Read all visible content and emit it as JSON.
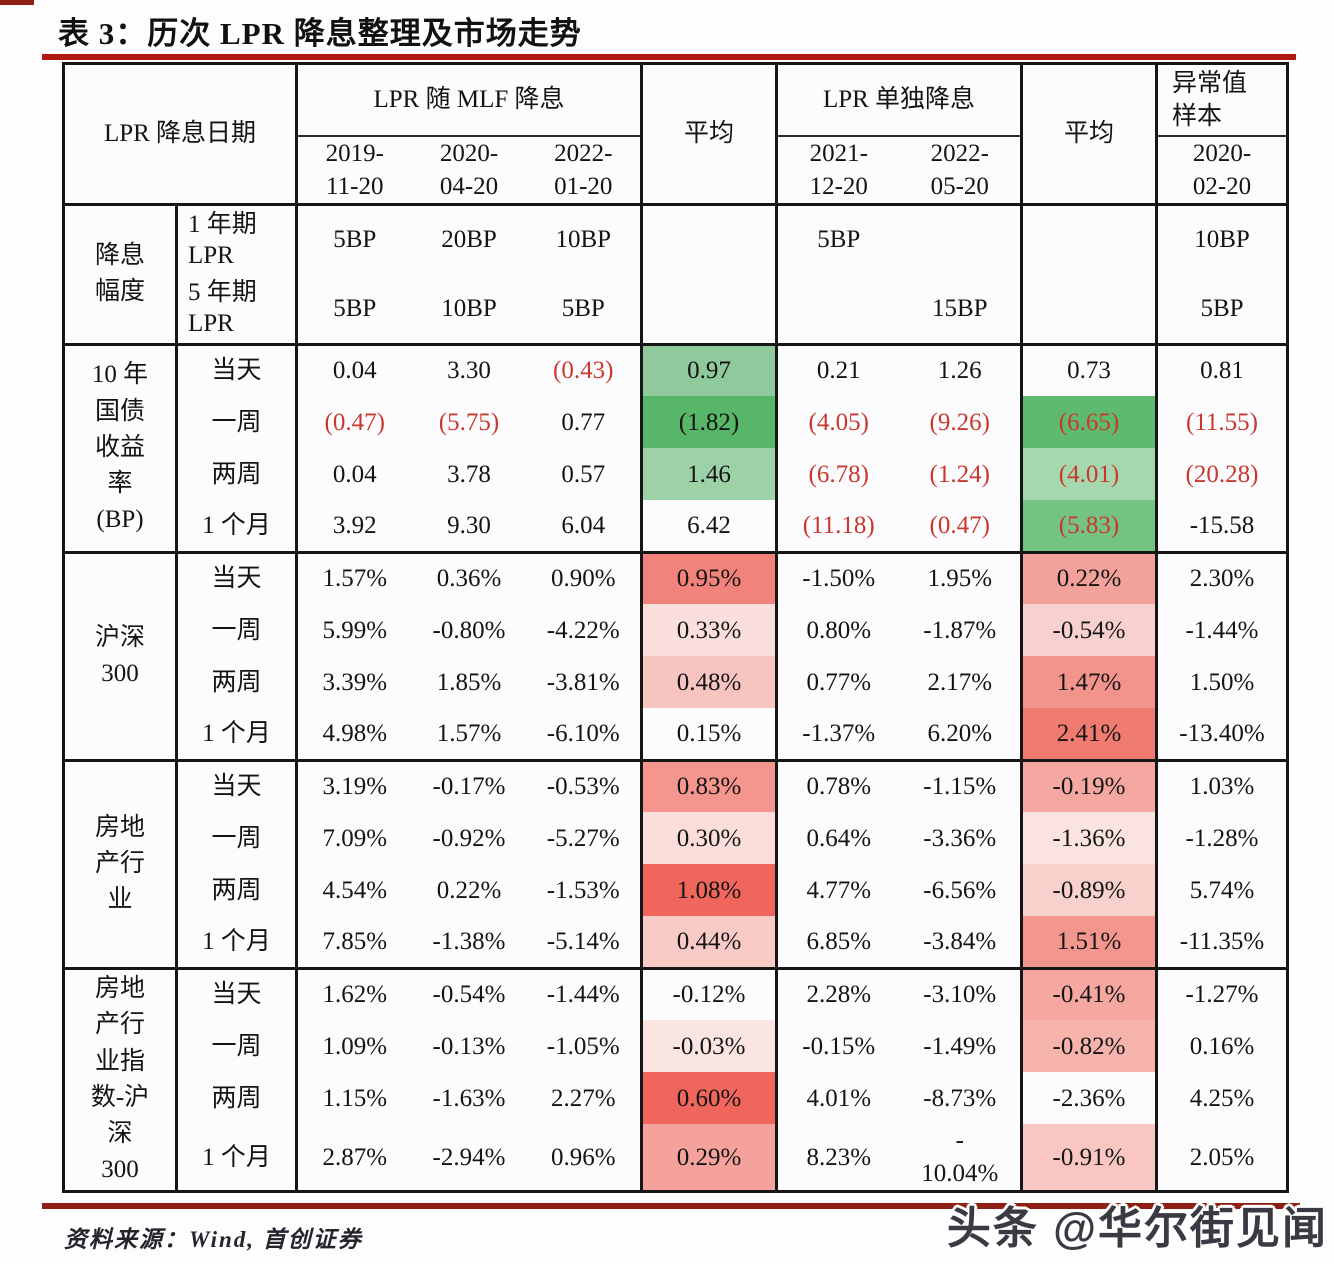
{
  "page": {
    "title": "表 3：历次 LPR 降息整理及市场走势",
    "source_note": "资料来源：Wind, 首创证券",
    "watermark": "头条 @华尔街见闻"
  },
  "colors": {
    "title_rule": "#b21812",
    "bottom_rule": "#8e1f14",
    "negative_text": "#c9382d",
    "border": "#161616",
    "green_strong": "#57b667",
    "green_light": "#9dd2a7",
    "red_strong": "#f0665c",
    "red_light": "#fbdeda"
  },
  "table": {
    "header": {
      "date_col_label": "LPR 降息日期",
      "group_mlf": "LPR 随 MLF 降息",
      "avg_label": "平均",
      "group_solo": "LPR 单独降息",
      "avg_label_2": "平均",
      "outlier_label": "异常值\n样本",
      "mlf_dates": [
        "2019-\n11-20",
        "2020-\n04-20",
        "2022-\n01-20"
      ],
      "solo_dates": [
        "2021-\n12-20",
        "2022-\n05-20"
      ],
      "outlier_date": "2020-\n02-20"
    },
    "sections": [
      {
        "label": "降息\n幅度",
        "type": "cut",
        "rows": [
          {
            "label": "1 年期\nLPR",
            "cells": [
              {
                "t": "5BP"
              },
              {
                "t": "20BP"
              },
              {
                "t": "10BP"
              },
              {},
              {
                "t": "5BP"
              },
              {},
              {},
              {
                "t": "10BP"
              }
            ]
          },
          {
            "label": "5 年期\nLPR",
            "cells": [
              {
                "t": "5BP"
              },
              {
                "t": "10BP"
              },
              {
                "t": "5BP"
              },
              {},
              {},
              {
                "t": "15BP"
              },
              {},
              {
                "t": "5BP"
              }
            ]
          }
        ]
      },
      {
        "label": "10 年\n国债\n收益\n率\n(BP)",
        "type": "data",
        "rows": [
          {
            "label": "当天",
            "cells": [
              {
                "t": "0.04"
              },
              {
                "t": "3.30"
              },
              {
                "t": "(0.43)",
                "red": true
              },
              {
                "t": "0.97",
                "bg": "#8fca9c"
              },
              {
                "t": "0.21"
              },
              {
                "t": "1.26"
              },
              {
                "t": "0.73"
              },
              {
                "t": "0.81"
              }
            ]
          },
          {
            "label": "一周",
            "cells": [
              {
                "t": "(0.47)",
                "red": true
              },
              {
                "t": "(5.75)",
                "red": true
              },
              {
                "t": "0.77"
              },
              {
                "t": "(1.82)",
                "bg": "#57b667"
              },
              {
                "t": "(4.05)",
                "red": true
              },
              {
                "t": "(9.26)",
                "red": true
              },
              {
                "t": "(6.65)",
                "bg": "#5eba6e",
                "red": true
              },
              {
                "t": "(11.55)",
                "red": true
              }
            ]
          },
          {
            "label": "两周",
            "cells": [
              {
                "t": "0.04"
              },
              {
                "t": "3.78"
              },
              {
                "t": "0.57"
              },
              {
                "t": "1.46",
                "bg": "#9dd2a7"
              },
              {
                "t": "(6.78)",
                "red": true
              },
              {
                "t": "(1.24)",
                "red": true
              },
              {
                "t": "(4.01)",
                "bg": "#a6d8af",
                "red": true
              },
              {
                "t": "(20.28)",
                "red": true
              }
            ]
          },
          {
            "label": "1 个月",
            "cells": [
              {
                "t": "3.92"
              },
              {
                "t": "9.30"
              },
              {
                "t": "6.04"
              },
              {
                "t": "6.42"
              },
              {
                "t": "(11.18)",
                "red": true
              },
              {
                "t": "(0.47)",
                "red": true
              },
              {
                "t": "(5.83)",
                "bg": "#74c383",
                "red": true
              },
              {
                "t": "-15.58"
              }
            ]
          }
        ]
      },
      {
        "label": "沪深\n300",
        "type": "data",
        "rows": [
          {
            "label": "当天",
            "cells": [
              {
                "t": "1.57%"
              },
              {
                "t": "0.36%"
              },
              {
                "t": "0.90%"
              },
              {
                "t": "0.95%",
                "bg": "#f2837c"
              },
              {
                "t": "-1.50%"
              },
              {
                "t": "1.95%"
              },
              {
                "t": "0.22%",
                "bg": "#f3a19b"
              },
              {
                "t": "2.30%"
              }
            ]
          },
          {
            "label": "一周",
            "cells": [
              {
                "t": "5.99%"
              },
              {
                "t": "-0.80%"
              },
              {
                "t": "-4.22%"
              },
              {
                "t": "0.33%",
                "bg": "#fadfdd"
              },
              {
                "t": "0.80%"
              },
              {
                "t": "-1.87%"
              },
              {
                "t": "-0.54%",
                "bg": "#f8d0cd"
              },
              {
                "t": "-1.44%"
              }
            ]
          },
          {
            "label": "两周",
            "cells": [
              {
                "t": "3.39%"
              },
              {
                "t": "1.85%"
              },
              {
                "t": "-3.81%"
              },
              {
                "t": "0.48%",
                "bg": "#f7c4c0"
              },
              {
                "t": "0.77%"
              },
              {
                "t": "2.17%"
              },
              {
                "t": "1.47%",
                "bg": "#f2938c"
              },
              {
                "t": "1.50%"
              }
            ]
          },
          {
            "label": "1 个月",
            "cells": [
              {
                "t": "4.98%"
              },
              {
                "t": "1.57%"
              },
              {
                "t": "-6.10%"
              },
              {
                "t": "0.15%"
              },
              {
                "t": "-1.37%"
              },
              {
                "t": "6.20%"
              },
              {
                "t": "2.41%",
                "bg": "#f07b70"
              },
              {
                "t": "-13.40%"
              }
            ]
          }
        ]
      },
      {
        "label": "房地\n产行\n业",
        "type": "data",
        "rows": [
          {
            "label": "当天",
            "cells": [
              {
                "t": "3.19%"
              },
              {
                "t": "-0.17%"
              },
              {
                "t": "-0.53%"
              },
              {
                "t": "0.83%",
                "bg": "#f4958e"
              },
              {
                "t": "0.78%"
              },
              {
                "t": "-1.15%"
              },
              {
                "t": "-0.19%",
                "bg": "#f5a8a1"
              },
              {
                "t": "1.03%"
              }
            ]
          },
          {
            "label": "一周",
            "cells": [
              {
                "t": "7.09%"
              },
              {
                "t": "-0.92%"
              },
              {
                "t": "-5.27%"
              },
              {
                "t": "0.30%",
                "bg": "#fbdeda"
              },
              {
                "t": "0.64%"
              },
              {
                "t": "-3.36%"
              },
              {
                "t": "-1.36%",
                "bg": "#fbe3e0"
              },
              {
                "t": "-1.28%"
              }
            ]
          },
          {
            "label": "两周",
            "cells": [
              {
                "t": "4.54%"
              },
              {
                "t": "0.22%"
              },
              {
                "t": "-1.53%"
              },
              {
                "t": "1.08%",
                "bg": "#f0665c"
              },
              {
                "t": "4.77%"
              },
              {
                "t": "-6.56%"
              },
              {
                "t": "-0.89%",
                "bg": "#f8d0cc"
              },
              {
                "t": "5.74%"
              }
            ]
          },
          {
            "label": "1 个月",
            "cells": [
              {
                "t": "7.85%"
              },
              {
                "t": "-1.38%"
              },
              {
                "t": "-5.14%"
              },
              {
                "t": "0.44%",
                "bg": "#f8cbc7"
              },
              {
                "t": "6.85%"
              },
              {
                "t": "-3.84%"
              },
              {
                "t": "1.51%",
                "bg": "#f3968e"
              },
              {
                "t": "-11.35%"
              }
            ]
          }
        ]
      },
      {
        "label": "房地\n产行\n业指\n数-沪\n深\n300",
        "type": "data",
        "rows": [
          {
            "label": "当天",
            "cells": [
              {
                "t": "1.62%"
              },
              {
                "t": "-0.54%"
              },
              {
                "t": "-1.44%"
              },
              {
                "t": "-0.12%"
              },
              {
                "t": "2.28%"
              },
              {
                "t": "-3.10%"
              },
              {
                "t": "-0.41%",
                "bg": "#f5a7a0"
              },
              {
                "t": "-1.27%"
              }
            ]
          },
          {
            "label": "一周",
            "cells": [
              {
                "t": "1.09%"
              },
              {
                "t": "-0.13%"
              },
              {
                "t": "-1.05%"
              },
              {
                "t": "-0.03%",
                "bg": "#fbe5e2"
              },
              {
                "t": "-0.15%"
              },
              {
                "t": "-1.49%"
              },
              {
                "t": "-0.82%",
                "bg": "#f6b3ac"
              },
              {
                "t": "0.16%"
              }
            ]
          },
          {
            "label": "两周",
            "cells": [
              {
                "t": "1.15%"
              },
              {
                "t": "-1.63%"
              },
              {
                "t": "2.27%"
              },
              {
                "t": "0.60%",
                "bg": "#f0665c"
              },
              {
                "t": "4.01%"
              },
              {
                "t": "-8.73%"
              },
              {
                "t": "-2.36%"
              },
              {
                "t": "4.25%"
              }
            ]
          },
          {
            "label": "1 个月",
            "cells": [
              {
                "t": "2.87%"
              },
              {
                "t": "-2.94%"
              },
              {
                "t": "0.96%"
              },
              {
                "t": "0.29%",
                "bg": "#f4a29b"
              },
              {
                "t": "8.23%"
              },
              {
                "t": "-\n10.04%"
              },
              {
                "t": "-0.91%",
                "bg": "#f9c6c1"
              },
              {
                "t": "2.05%"
              }
            ]
          }
        ]
      }
    ]
  }
}
